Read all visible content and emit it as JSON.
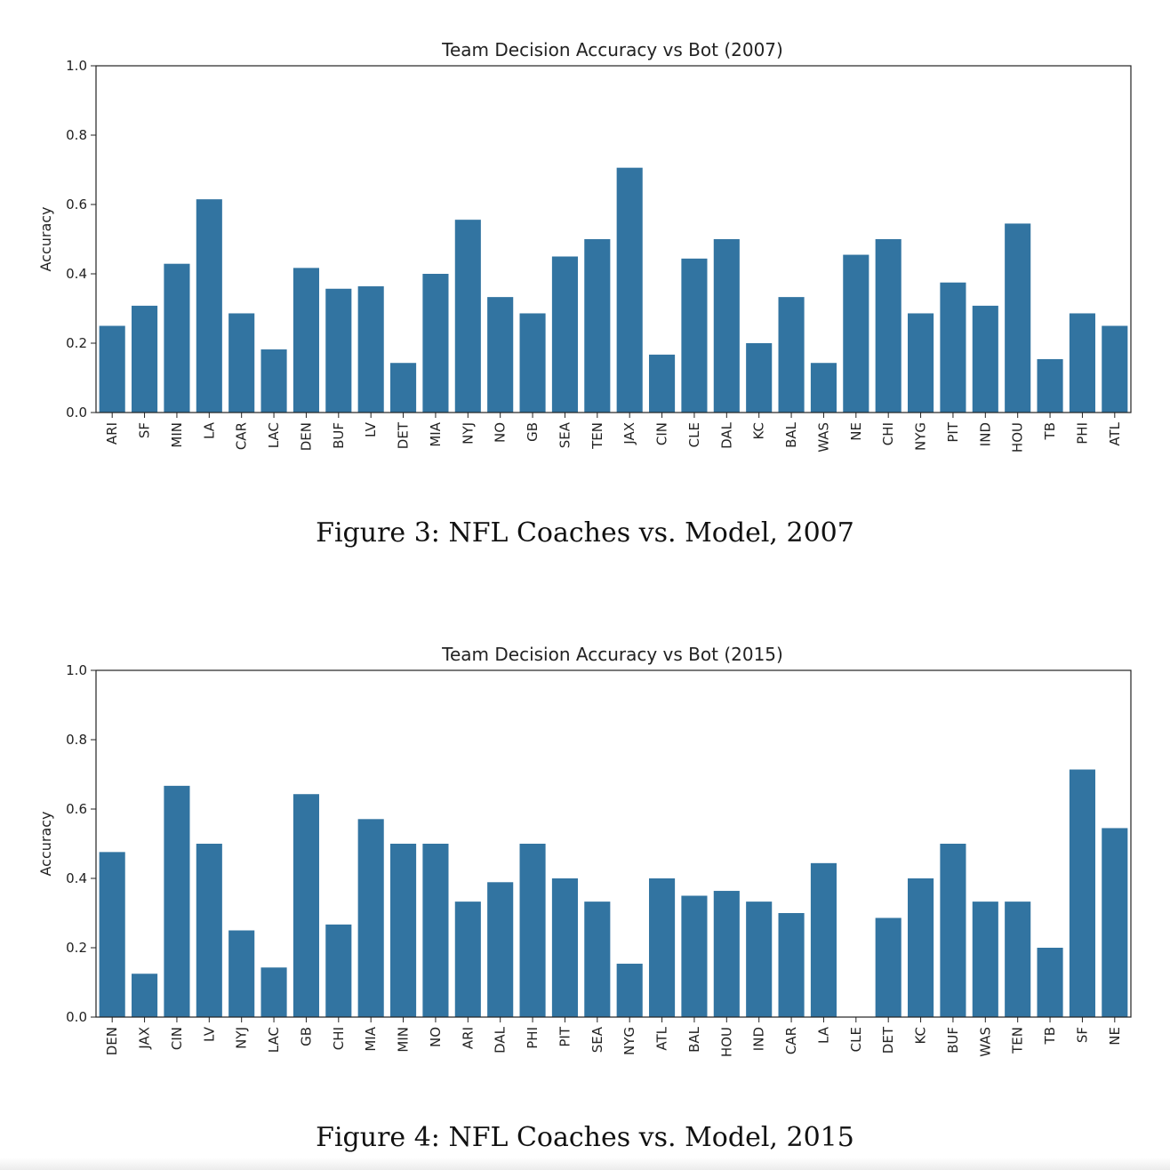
{
  "chart_data": [
    {
      "type": "bar",
      "title": "Team Decision Accuracy vs Bot (2007)",
      "xlabel": "",
      "ylabel": "Accuracy",
      "ylim": [
        0,
        1.0
      ],
      "yticks": [
        "0.0",
        "0.2",
        "0.4",
        "0.6",
        "0.8",
        "1.0"
      ],
      "color": "#3274a1",
      "categories": [
        "ARI",
        "SF",
        "MIN",
        "LA",
        "CAR",
        "LAC",
        "DEN",
        "BUF",
        "LV",
        "DET",
        "MIA",
        "NYJ",
        "NO",
        "GB",
        "SEA",
        "TEN",
        "JAX",
        "CIN",
        "CLE",
        "DAL",
        "KC",
        "BAL",
        "WAS",
        "NE",
        "CHI",
        "NYG",
        "PIT",
        "IND",
        "HOU",
        "TB",
        "PHI",
        "ATL"
      ],
      "values": [
        0.25,
        0.308,
        0.429,
        0.615,
        0.286,
        0.182,
        0.417,
        0.357,
        0.364,
        0.143,
        0.4,
        0.556,
        0.333,
        0.286,
        0.45,
        0.5,
        0.706,
        0.167,
        0.444,
        0.5,
        0.2,
        0.333,
        0.143,
        0.455,
        0.5,
        0.286,
        0.375,
        0.308,
        0.545,
        0.154,
        0.286,
        0.25
      ]
    },
    {
      "type": "bar",
      "title": "Team Decision Accuracy vs Bot (2015)",
      "xlabel": "",
      "ylabel": "Accuracy",
      "ylim": [
        0,
        1.0
      ],
      "yticks": [
        "0.0",
        "0.2",
        "0.4",
        "0.6",
        "0.8",
        "1.0"
      ],
      "color": "#3274a1",
      "categories": [
        "DEN",
        "JAX",
        "CIN",
        "LV",
        "NYJ",
        "LAC",
        "GB",
        "CHI",
        "MIA",
        "MIN",
        "NO",
        "ARI",
        "DAL",
        "PHI",
        "PIT",
        "SEA",
        "NYG",
        "ATL",
        "BAL",
        "HOU",
        "IND",
        "CAR",
        "LA",
        "CLE",
        "DET",
        "KC",
        "BUF",
        "WAS",
        "TEN",
        "TB",
        "SF",
        "NE"
      ],
      "values": [
        0.476,
        0.125,
        0.667,
        0.5,
        0.25,
        0.143,
        0.643,
        0.267,
        0.571,
        0.5,
        0.5,
        0.333,
        0.389,
        0.5,
        0.4,
        0.333,
        0.154,
        0.4,
        0.35,
        0.364,
        0.333,
        0.3,
        0.444,
        0.0,
        0.286,
        0.4,
        0.5,
        0.333,
        0.333,
        0.2,
        0.714,
        0.545
      ]
    }
  ],
  "captions": {
    "fig3": "Figure 3: NFL Coaches vs. Model, 2007",
    "fig4": "Figure 4: NFL Coaches vs. Model, 2015"
  }
}
